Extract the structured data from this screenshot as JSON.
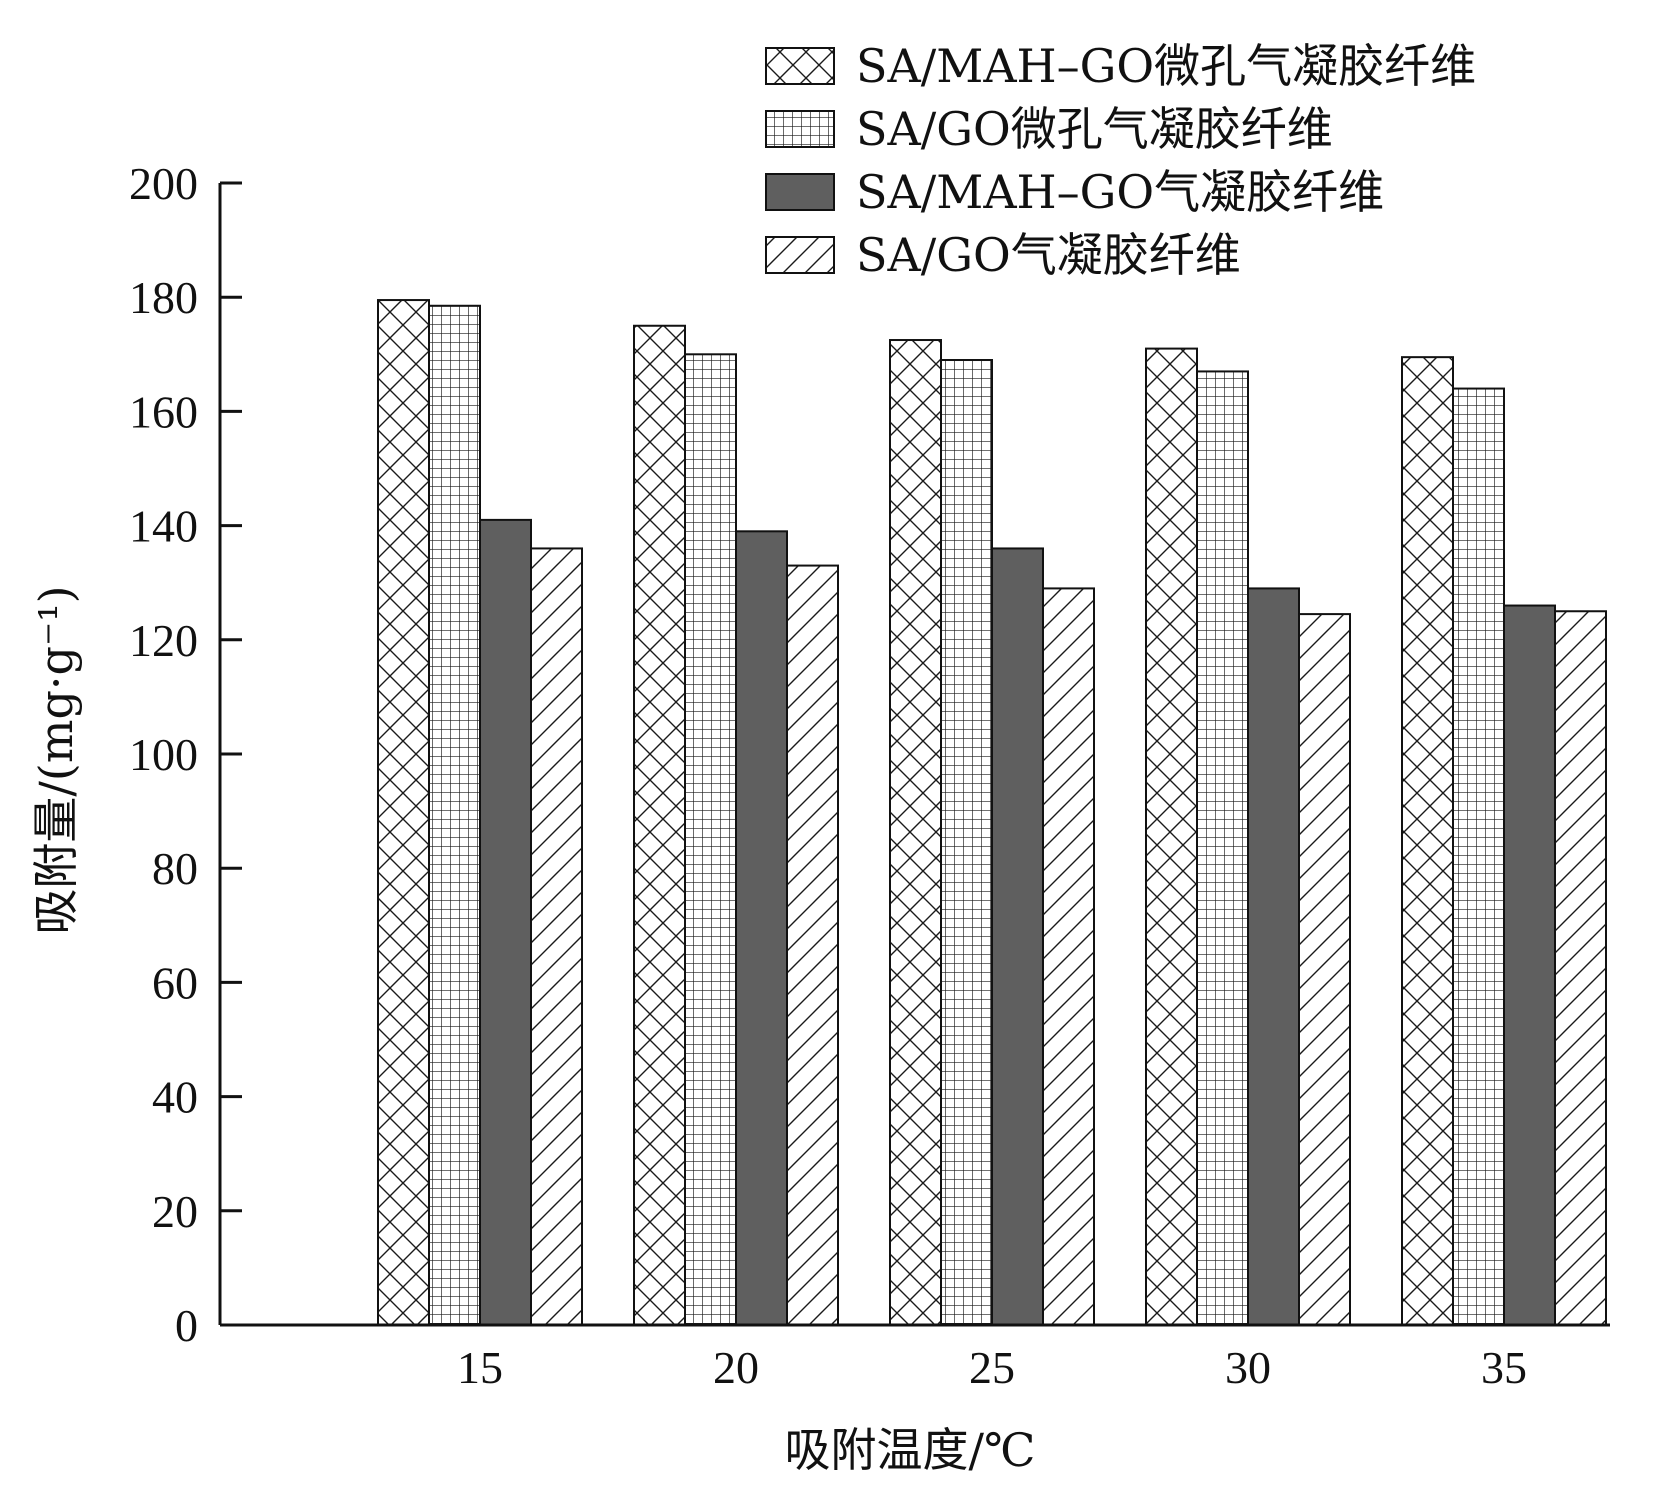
{
  "chart_data": {
    "type": "bar",
    "title": "",
    "xlabel": "吸附温度/℃",
    "ylabel": "吸附量/(mg·g⁻¹)",
    "ylim": [
      0,
      200
    ],
    "yticks": [
      "0",
      "20",
      "40",
      "60",
      "80",
      "100",
      "120",
      "140",
      "160",
      "180",
      "200"
    ],
    "categories": [
      "15",
      "20",
      "25",
      "30",
      "35"
    ],
    "legend_position": "top-right",
    "grid": false,
    "series": [
      {
        "name": "SA/MAH–GO微孔气凝胶纤维",
        "pattern": "crosshatch",
        "color": "#ffffff",
        "values": [
          179.5,
          175,
          172.5,
          171,
          169.5
        ]
      },
      {
        "name": "SA/GO微孔气凝胶纤维",
        "pattern": "grid",
        "color": "#ffffff",
        "values": [
          178.5,
          170,
          169,
          167,
          164
        ]
      },
      {
        "name": "SA/MAH–GO气凝胶纤维",
        "pattern": "solid",
        "color": "#5f5f5f",
        "values": [
          141,
          139,
          136,
          129,
          126
        ]
      },
      {
        "name": "SA/GO气凝胶纤维",
        "pattern": "diagonal",
        "color": "#ffffff",
        "values": [
          136,
          133,
          129,
          124.5,
          125
        ]
      }
    ]
  }
}
